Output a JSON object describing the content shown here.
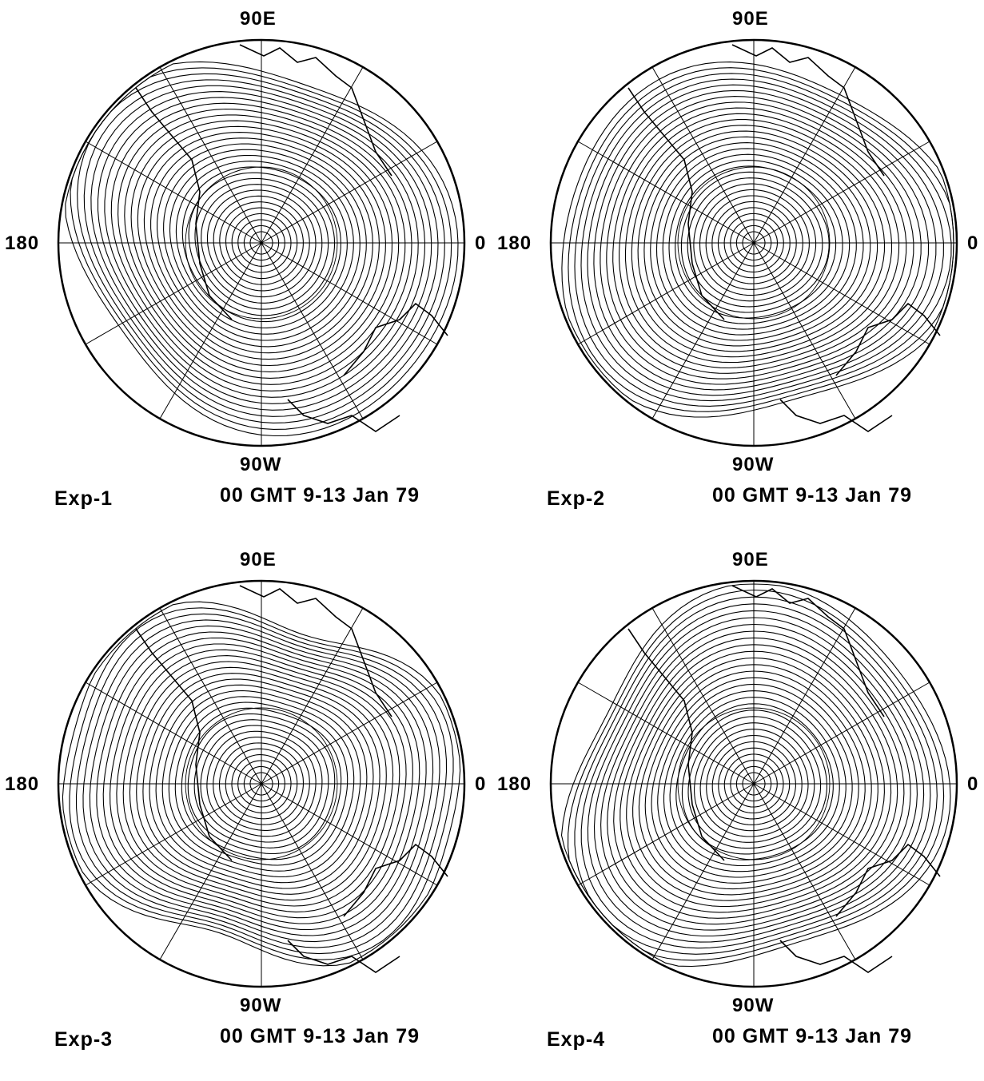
{
  "panels": [
    {
      "exp": "Exp-1",
      "time": "00 GMT  9-13 Jan 79",
      "top": "90E",
      "bottom": "90W",
      "left": "180",
      "right": "0"
    },
    {
      "exp": "Exp-2",
      "time": "00 GMT  9-13 Jan 79",
      "top": "90E",
      "bottom": "90W",
      "left": "180",
      "right": "0"
    },
    {
      "exp": "Exp-3",
      "time": "00 GMT  9-13 Jan 79",
      "top": "90E",
      "bottom": "90W",
      "left": "180",
      "right": "0"
    },
    {
      "exp": "Exp-4",
      "time": "00 GMT  9-13 Jan 79",
      "top": "90E",
      "bottom": "90W",
      "left": "180",
      "right": "0"
    }
  ]
}
